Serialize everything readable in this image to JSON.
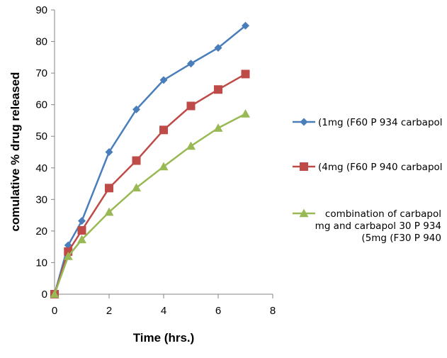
{
  "chart_data": {
    "type": "line",
    "title": "",
    "xlabel": "Time (hrs.)",
    "ylabel": "comulative % drug released",
    "xlim": [
      0,
      8
    ],
    "ylim": [
      0,
      90
    ],
    "x_ticks": [
      "0",
      "2",
      "4",
      "6",
      "8"
    ],
    "y_ticks": [
      "0",
      "10",
      "20",
      "30",
      "40",
      "50",
      "60",
      "70",
      "80",
      "90"
    ],
    "grid": false,
    "legend_position": "right",
    "x": [
      0,
      0.5,
      1,
      2,
      3,
      4,
      5,
      6,
      7
    ],
    "series": [
      {
        "name": "(1mg (F60 P 934 carbapol",
        "legend_lines": [
          "(1mg (F60 P 934 carbapol"
        ],
        "color": "#4a7ebb",
        "marker": "diamond",
        "values": [
          0,
          15.5,
          23.2,
          45,
          58.5,
          67.8,
          73,
          78,
          85
        ]
      },
      {
        "name": "(4mg (F60 P 940 carbapol",
        "legend_lines": [
          "(4mg (F60 P 940 carbapol"
        ],
        "color": "#be4b48",
        "marker": "square",
        "values": [
          0,
          13.5,
          20.2,
          33.6,
          42.3,
          52,
          59.6,
          64.8,
          69.7
        ]
      },
      {
        "name": "combination of carbapol mg and carbapol 30 P 934 (5mg (F30 P 940",
        "legend_lines": [
          "combination of carbapol",
          "mg and carbapol 30 P 934",
          "(5mg (F30 P 940"
        ],
        "color": "#98b954",
        "marker": "triangle",
        "values": [
          0,
          12,
          17.3,
          26,
          33.7,
          40.4,
          46.9,
          52.6,
          57.1
        ]
      }
    ]
  }
}
